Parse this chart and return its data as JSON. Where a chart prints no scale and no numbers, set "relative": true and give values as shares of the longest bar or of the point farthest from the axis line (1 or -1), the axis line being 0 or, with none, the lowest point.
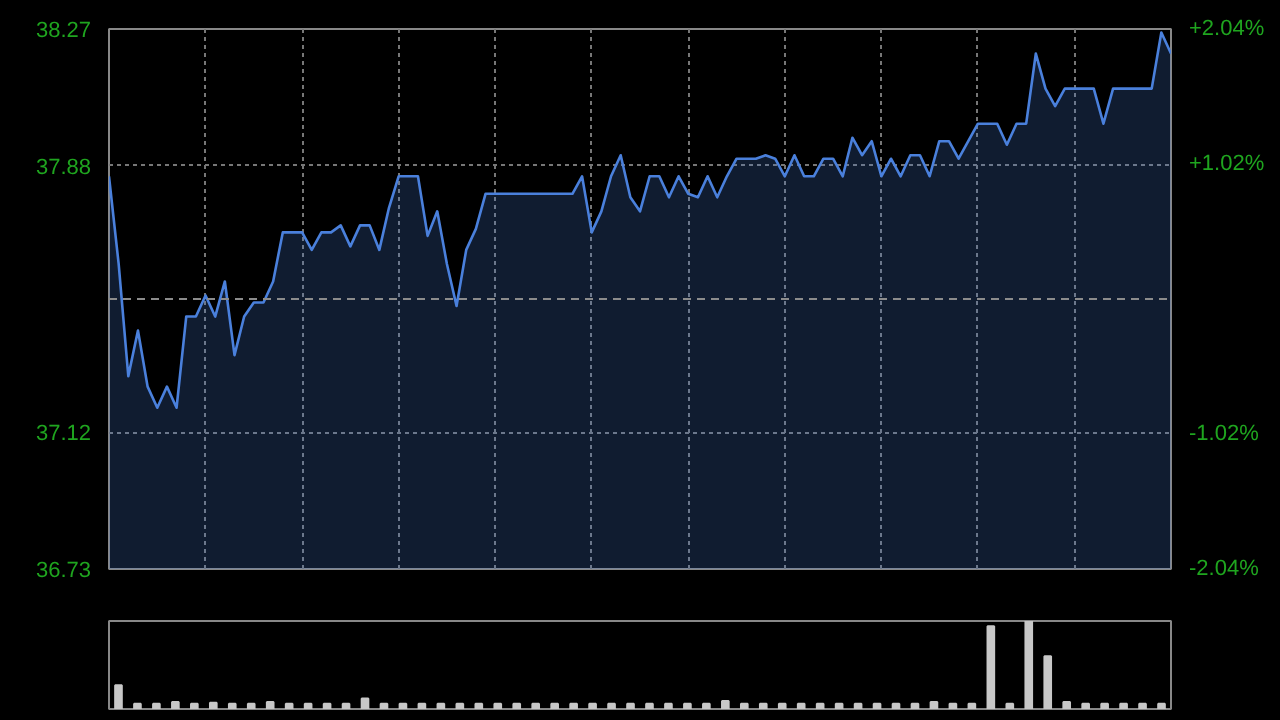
{
  "chart_data": [
    {
      "type": "area",
      "categories": [
        null,
        null,
        null,
        null,
        null,
        null,
        null,
        null,
        null,
        null,
        null,
        null,
        null,
        null,
        null,
        null,
        null,
        null,
        null,
        null,
        null,
        null,
        null,
        null,
        null,
        null,
        null,
        null,
        null,
        null,
        null,
        null,
        null,
        null,
        null,
        null,
        null,
        null,
        null,
        null,
        null,
        null,
        null,
        null,
        null,
        null,
        null,
        null,
        null,
        null,
        null,
        null,
        null,
        null,
        null,
        null,
        null,
        null,
        null,
        null,
        null,
        null,
        null,
        null,
        null,
        null,
        null,
        null,
        null,
        null,
        null,
        null,
        null,
        null,
        null,
        null,
        null,
        null,
        null,
        null,
        null,
        null,
        null,
        null,
        null,
        null,
        null,
        null,
        null,
        null,
        null,
        null,
        null,
        null,
        null,
        null,
        null,
        null,
        null,
        null,
        null,
        null,
        null,
        null,
        null,
        null,
        null,
        null,
        null,
        null,
        null
      ],
      "series": [
        {
          "color": "#4a80dc",
          "values": [
            37.85,
            37.6,
            37.28,
            37.41,
            37.25,
            37.19,
            37.25,
            37.19,
            37.45,
            37.45,
            37.51,
            37.45,
            37.55,
            37.34,
            37.45,
            37.49,
            37.49,
            37.55,
            37.69,
            37.69,
            37.69,
            37.64,
            37.69,
            37.69,
            37.71,
            37.65,
            37.71,
            37.71,
            37.64,
            37.76,
            37.85,
            37.85,
            37.85,
            37.68,
            37.75,
            37.6,
            37.48,
            37.64,
            37.7,
            37.8,
            37.8,
            37.8,
            37.8,
            37.8,
            37.8,
            37.8,
            37.8,
            37.8,
            37.8,
            37.85,
            37.69,
            37.75,
            37.85,
            37.91,
            37.79,
            37.75,
            37.85,
            37.85,
            37.79,
            37.85,
            37.8,
            37.79,
            37.85,
            37.79,
            37.85,
            37.9,
            37.9,
            37.9,
            37.91,
            37.9,
            37.85,
            37.91,
            37.85,
            37.85,
            37.9,
            37.9,
            37.85,
            37.96,
            37.91,
            37.95,
            37.85,
            37.9,
            37.85,
            37.91,
            37.91,
            37.85,
            37.95,
            37.95,
            37.9,
            37.95,
            38.0,
            38.0,
            38.0,
            37.94,
            38.0,
            38.0,
            38.2,
            38.1,
            38.05,
            38.1,
            38.1,
            38.1,
            38.1,
            38.0,
            38.1,
            38.1,
            38.1,
            38.1,
            38.1,
            38.26,
            38.2
          ]
        }
      ],
      "ylim": [
        36.73,
        38.27
      ],
      "yticks": [
        36.73,
        37.12,
        37.88,
        38.27
      ],
      "y2lim": [
        -2.04,
        2.04
      ],
      "y2ticks": [
        {
          "value": -2.04,
          "label": "-2.04%"
        },
        {
          "value": -1.02,
          "label": "-1.02%"
        },
        {
          "value": 1.02,
          "label": "+1.02%"
        },
        {
          "value": 2.04,
          "label": "+2.04%"
        }
      ],
      "ref_lines": [
        {
          "axis": "y",
          "value": 37.5,
          "color": "#8c8c8c",
          "line_style": "dashed"
        }
      ],
      "grid": true,
      "tick_labels": "y",
      "line_style": "solid"
    },
    {
      "type": "bar",
      "relative": true,
      "categories": [
        null,
        null,
        null,
        null,
        null,
        null,
        null,
        null,
        null,
        null,
        null,
        null,
        null,
        null,
        null,
        null,
        null,
        null,
        null,
        null,
        null,
        null,
        null,
        null,
        null,
        null,
        null,
        null,
        null,
        null,
        null,
        null,
        null,
        null,
        null,
        null,
        null,
        null,
        null,
        null,
        null,
        null,
        null,
        null,
        null,
        null,
        null,
        null,
        null,
        null,
        null,
        null,
        null,
        null,
        null,
        null
      ],
      "series": [
        {
          "color": "#c8c8c8",
          "values": [
            0.27,
            0.06,
            0.06,
            0.08,
            0.06,
            0.07,
            0.06,
            0.06,
            0.08,
            0.06,
            0.06,
            0.06,
            0.06,
            0.12,
            0.06,
            0.06,
            0.06,
            0.06,
            0.06,
            0.06,
            0.06,
            0.06,
            0.06,
            0.06,
            0.06,
            0.06,
            0.06,
            0.06,
            0.06,
            0.06,
            0.06,
            0.06,
            0.09,
            0.06,
            0.06,
            0.06,
            0.06,
            0.06,
            0.06,
            0.06,
            0.06,
            0.06,
            0.06,
            0.08,
            0.06,
            0.06,
            0.94,
            0.06,
            1.0,
            0.6,
            0.08,
            0.06,
            0.06,
            0.06,
            0.06,
            0.06
          ]
        }
      ],
      "grid": false,
      "tick_labels": false
    }
  ]
}
